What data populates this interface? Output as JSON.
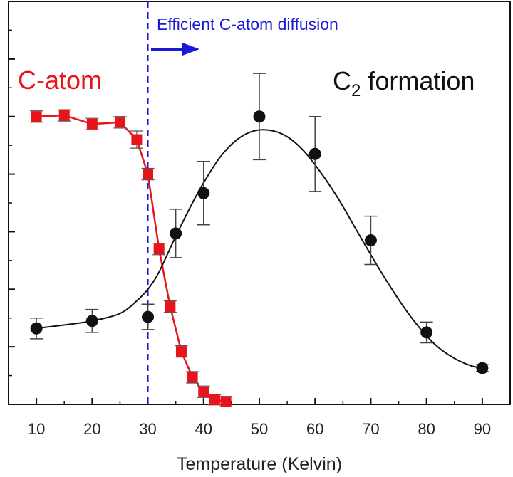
{
  "chart_data": {
    "type": "scatter",
    "title": "",
    "xlabel": "Temperature (Kelvin)",
    "ylabel": "",
    "xlim": [
      5,
      95
    ],
    "ylim": [
      0,
      7
    ],
    "xticks": [
      10,
      20,
      30,
      40,
      50,
      60,
      70,
      80,
      90
    ],
    "yticks_count": 7,
    "series": [
      {
        "name": "C-atom",
        "color": "#e8141c",
        "marker": "square",
        "connected": "polyline",
        "points": [
          {
            "x": 10,
            "y": 5.0,
            "err": 0.05
          },
          {
            "x": 15,
            "y": 5.02,
            "err": 0.05
          },
          {
            "x": 20,
            "y": 4.87,
            "err": 0.05
          },
          {
            "x": 25,
            "y": 4.9,
            "err": 0.05
          },
          {
            "x": 28,
            "y": 4.6,
            "err": 0.1
          },
          {
            "x": 30,
            "y": 4.0,
            "err": 0.05
          },
          {
            "x": 32,
            "y": 2.7,
            "err": 0.05
          },
          {
            "x": 34,
            "y": 1.7,
            "err": 0.05
          },
          {
            "x": 36,
            "y": 0.92,
            "err": 0.05
          },
          {
            "x": 38,
            "y": 0.47,
            "err": 0.05
          },
          {
            "x": 40,
            "y": 0.22,
            "err": 0.05
          },
          {
            "x": 42,
            "y": 0.08,
            "err": 0.04
          },
          {
            "x": 44,
            "y": 0.05,
            "err": 0.04
          }
        ]
      },
      {
        "name": "C2 formation",
        "color": "#111111",
        "marker": "circle",
        "connected": "smooth-fit",
        "points": [
          {
            "x": 10,
            "y": 1.32,
            "err": 0.18
          },
          {
            "x": 20,
            "y": 1.45,
            "err": 0.2
          },
          {
            "x": 30,
            "y": 1.52,
            "err": 0.22
          },
          {
            "x": 35,
            "y": 2.97,
            "err": 0.42
          },
          {
            "x": 40,
            "y": 3.67,
            "err": 0.55
          },
          {
            "x": 50,
            "y": 5.0,
            "err": 0.75
          },
          {
            "x": 60,
            "y": 4.35,
            "err": 0.65
          },
          {
            "x": 70,
            "y": 2.85,
            "err": 0.42
          },
          {
            "x": 80,
            "y": 1.25,
            "err": 0.18
          },
          {
            "x": 90,
            "y": 0.63,
            "err": 0.06
          }
        ],
        "fit": [
          [
            10,
            1.32
          ],
          [
            15,
            1.38
          ],
          [
            20,
            1.45
          ],
          [
            25,
            1.58
          ],
          [
            28,
            1.8
          ],
          [
            30,
            2.0
          ],
          [
            32,
            2.3
          ],
          [
            35,
            2.92
          ],
          [
            38,
            3.5
          ],
          [
            40,
            3.85
          ],
          [
            43,
            4.3
          ],
          [
            46,
            4.6
          ],
          [
            49,
            4.75
          ],
          [
            52,
            4.76
          ],
          [
            55,
            4.65
          ],
          [
            58,
            4.4
          ],
          [
            61,
            4.03
          ],
          [
            64,
            3.6
          ],
          [
            67,
            3.1
          ],
          [
            70,
            2.6
          ],
          [
            73,
            2.12
          ],
          [
            76,
            1.68
          ],
          [
            79,
            1.3
          ],
          [
            82,
            1.0
          ],
          [
            85,
            0.8
          ],
          [
            88,
            0.67
          ],
          [
            90,
            0.63
          ]
        ]
      }
    ],
    "annotations": {
      "vline_x": 30,
      "vline_color": "#1a1ad6",
      "efficient_label": "Efficient C-atom diffusion",
      "catom_label": "C-atom",
      "c2_main": "C",
      "c2_sub": "2",
      "c2_rest": " formation"
    }
  }
}
